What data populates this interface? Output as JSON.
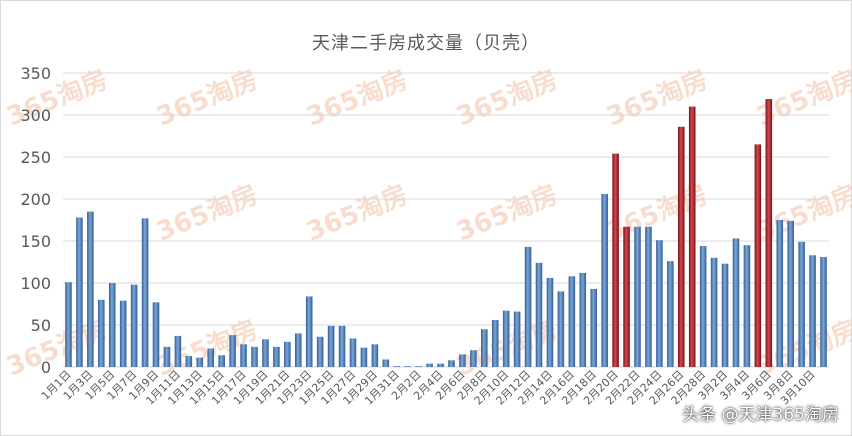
{
  "chart_data": {
    "type": "bar",
    "title": "天津二手房成交量（贝壳）",
    "xlabel": "",
    "ylabel": "",
    "ylim": [
      0,
      350
    ],
    "yticks": [
      0,
      50,
      100,
      150,
      200,
      250,
      300,
      350
    ],
    "grid": true,
    "legend": "none",
    "colors": {
      "normal": "#4f81bd",
      "highlight": "#a5202a",
      "grid": "#d9d9d9",
      "tick_text": "#595959"
    },
    "categories": [
      "1月1日",
      "1月2日",
      "1月3日",
      "1月4日",
      "1月5日",
      "1月6日",
      "1月7日",
      "1月8日",
      "1月9日",
      "1月10日",
      "1月11日",
      "1月12日",
      "1月13日",
      "1月14日",
      "1月15日",
      "1月16日",
      "1月17日",
      "1月18日",
      "1月19日",
      "1月20日",
      "1月21日",
      "1月22日",
      "1月23日",
      "1月24日",
      "1月25日",
      "1月26日",
      "1月27日",
      "1月28日",
      "1月29日",
      "1月30日",
      "1月31日",
      "2月1日",
      "2月2日",
      "2月3日",
      "2月4日",
      "2月5日",
      "2月6日",
      "2月7日",
      "2月8日",
      "2月9日",
      "2月10日",
      "2月11日",
      "2月12日",
      "2月13日",
      "2月14日",
      "2月15日",
      "2月16日",
      "2月17日",
      "2月18日",
      "2月19日",
      "2月20日",
      "2月21日",
      "2月22日",
      "2月23日",
      "2月24日",
      "2月25日",
      "2月26日",
      "2月27日",
      "2月28日",
      "3月1日",
      "3月2日",
      "3月3日",
      "3月4日",
      "3月5日",
      "3月6日",
      "3月7日",
      "3月8日",
      "3月9日",
      "3月10日",
      "3月11日"
    ],
    "visible_tick_labels": [
      "1月1日",
      "1月3日",
      "1月5日",
      "1月7日",
      "1月9日",
      "1月11日",
      "1月13日",
      "1月15日",
      "1月17日",
      "1月19日",
      "1月21日",
      "1月23日",
      "1月25日",
      "1月27日",
      "1月29日",
      "1月31日",
      "2月2日",
      "2月4日",
      "2月6日",
      "2月8日",
      "2月10日",
      "2月12日",
      "2月14日",
      "2月16日",
      "2月18日",
      "2月20日",
      "2月22日",
      "2月24日",
      "2月26日",
      "2月28日",
      "3月2日",
      "3月4日",
      "3月6日",
      "3月8日",
      "3月10日"
    ],
    "values": [
      101,
      178,
      185,
      80,
      100,
      79,
      98,
      177,
      77,
      24,
      37,
      13,
      11,
      22,
      14,
      38,
      27,
      24,
      33,
      24,
      30,
      40,
      84,
      36,
      49,
      49,
      34,
      23,
      27,
      9,
      1,
      1,
      1,
      4,
      4,
      8,
      15,
      20,
      45,
      56,
      67,
      66,
      143,
      124,
      106,
      90,
      108,
      112,
      93,
      206,
      254,
      167,
      167,
      167,
      151,
      126,
      286,
      310,
      144,
      130,
      123,
      153,
      145,
      265,
      319,
      175,
      174,
      149,
      133,
      131
    ],
    "highlight_categories": [
      "2月20日",
      "2月21日",
      "2月26日",
      "2月27日",
      "3月5日",
      "3月6日"
    ]
  },
  "watermark": "365淘房",
  "credit": "头条 @天津365淘房"
}
